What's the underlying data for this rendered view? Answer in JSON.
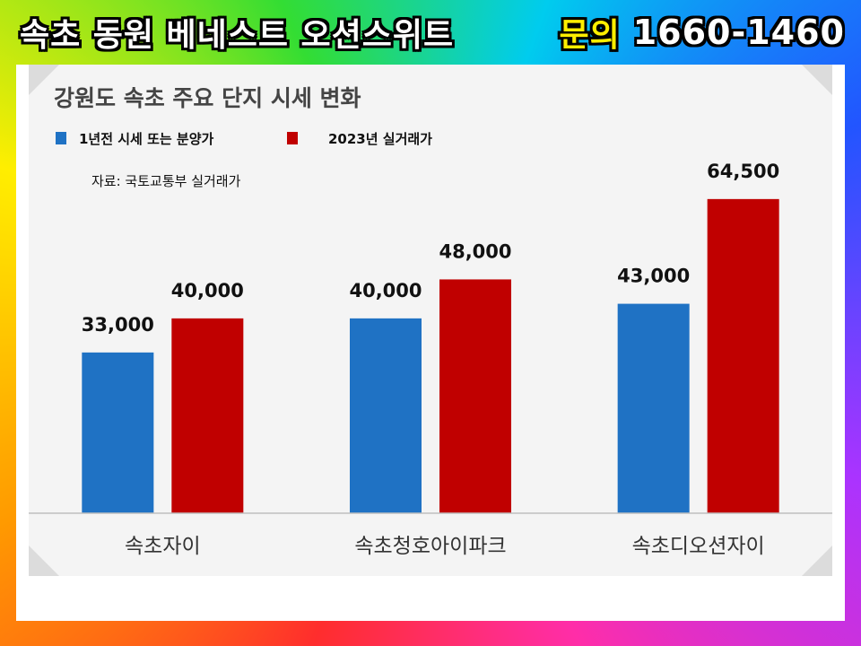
{
  "banner": {
    "title": "속초 동원 베네스트 오션스위트",
    "contact_label": "문의",
    "phone": "1660-1460"
  },
  "chart_data": {
    "type": "bar",
    "title": "강원도 속초 주요 단지 시세 변화",
    "source": "자료: 국토교통부 실거래가",
    "categories": [
      "속초자이",
      "속초청호아이파크",
      "속초디오션자이"
    ],
    "series": [
      {
        "name": "1년전 시세 또는 분양가",
        "color": "#1f72c4",
        "values": [
          33000,
          40000,
          43000
        ],
        "labels": [
          "33,000",
          "40,000",
          "43,000"
        ]
      },
      {
        "name": "2023년 실거래가",
        "color": "#c00000",
        "values": [
          40000,
          48000,
          64500
        ],
        "labels": [
          "40,000",
          "48,000",
          "64,500"
        ]
      }
    ],
    "ylim": [
      0,
      70000
    ],
    "grid": false,
    "legend": "top-left"
  }
}
